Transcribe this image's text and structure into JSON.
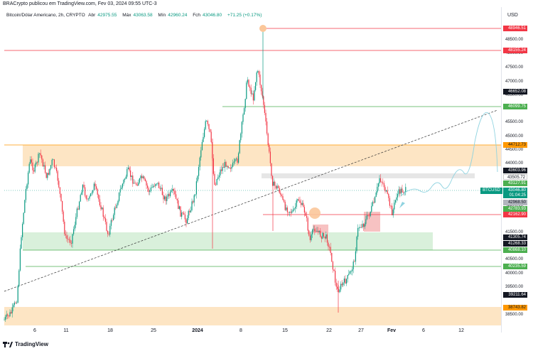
{
  "header": {
    "published_text": "BRACrypto publicou em TradingView.com, Fev 03, 2024 09:55 UTC-3",
    "symbol_text": "Bitcoin/Dólar Americano, 2h, CRYPTO",
    "open_label": "Abr",
    "open_value": "42975.55",
    "high_label": "Máx",
    "high_value": "43063.58",
    "low_label": "Mín",
    "low_value": "42960.24",
    "close_label": "Fch",
    "close_value": "43046.80",
    "change_value": "+71.25 (+0.17%)"
  },
  "axis": {
    "currency": "USD",
    "ticks": [
      "48500.00",
      "48000.00",
      "47500.00",
      "47000.00",
      "46500.00",
      "45500.00",
      "45000.00",
      "44500.00",
      "44000.00",
      "42500.00",
      "41500.00",
      "41000.00",
      "40500.00",
      "40000.00",
      "39500.00",
      "38500.00"
    ]
  },
  "price_tags": [
    {
      "value": "48946.51",
      "color": "#f23645",
      "text_color": "#ffffff"
    },
    {
      "value": "48155.24",
      "color": "#f23645",
      "text_color": "#ffffff"
    },
    {
      "value": "46652.08",
      "color": "#131722",
      "text_color": "#ffffff"
    },
    {
      "value": "46099.75",
      "color": "#4caf50",
      "text_color": "#ffffff"
    },
    {
      "value": "44712.73",
      "color": "#ff9800",
      "text_color": "#131722"
    },
    {
      "value": "43603.96",
      "color": "#131722",
      "text_color": "#ffffff"
    },
    {
      "value": "43505.72",
      "color": "#ffffff",
      "text_color": "#131722"
    },
    {
      "value": "43127.91",
      "color": "#4caf50",
      "text_color": "#ffffff"
    },
    {
      "value": "43046.80",
      "color": "#089981",
      "text_color": "#ffffff"
    },
    {
      "value": "01:04:25",
      "color": "#089981",
      "text_color": "#ffffff"
    },
    {
      "value": "42968.50",
      "color": "#b2b5be",
      "text_color": "#131722"
    },
    {
      "value": "42783.93",
      "color": "#4caf50",
      "text_color": "#ffffff"
    },
    {
      "value": "42162.90",
      "color": "#f23645",
      "text_color": "#ffffff"
    },
    {
      "value": "41305.74",
      "color": "#131722",
      "text_color": "#ffffff"
    },
    {
      "value": "41268.33",
      "color": "#131722",
      "text_color": "#ffffff"
    },
    {
      "value": "40868.10",
      "color": "#4caf50",
      "text_color": "#ffffff"
    },
    {
      "value": "40235.59",
      "color": "#4caf50",
      "text_color": "#ffffff"
    },
    {
      "value": "39211.64",
      "color": "#131722",
      "text_color": "#ffffff"
    },
    {
      "value": "38743.82",
      "color": "#ff9800",
      "text_color": "#131722"
    }
  ],
  "symbol_tag": "BTCUSD",
  "x_labels": [
    "6",
    "11",
    "18",
    "25",
    "2024",
    "8",
    "15",
    "22",
    "27",
    "Fev",
    "6",
    "12"
  ],
  "footer": {
    "brand": "TradingView"
  },
  "colors": {
    "up": "#089981",
    "down": "#f23645",
    "orange_zone": "#fde5c4",
    "green_zone": "#d9f0db",
    "gray_zone": "#e6e6e6"
  }
}
